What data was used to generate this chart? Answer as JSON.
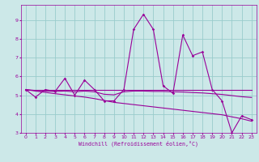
{
  "xlabel": "Windchill (Refroidissement éolien,°C)",
  "background_color": "#cce8e8",
  "grid_color": "#99cccc",
  "line_color": "#990099",
  "xlim": [
    -0.5,
    23.5
  ],
  "ylim": [
    3.0,
    9.8
  ],
  "yticks": [
    3,
    4,
    5,
    6,
    7,
    8,
    9
  ],
  "xticks": [
    0,
    1,
    2,
    3,
    4,
    5,
    6,
    7,
    8,
    9,
    10,
    11,
    12,
    13,
    14,
    15,
    16,
    17,
    18,
    19,
    20,
    21,
    22,
    23
  ],
  "series1_x": [
    0,
    1,
    2,
    3,
    4,
    5,
    6,
    7,
    8,
    9,
    10,
    11,
    12,
    13,
    14,
    15,
    16,
    17,
    18,
    19,
    20,
    21,
    22,
    23
  ],
  "series1_y": [
    5.3,
    4.9,
    5.3,
    5.2,
    5.9,
    5.0,
    5.8,
    5.3,
    4.7,
    4.7,
    5.3,
    8.5,
    9.3,
    8.5,
    5.5,
    5.1,
    8.2,
    7.1,
    7.3,
    5.3,
    4.7,
    3.0,
    3.9,
    3.7
  ],
  "series2_x": [
    0,
    23
  ],
  "series2_y": [
    5.3,
    5.3
  ],
  "series3_x": [
    0,
    1,
    2,
    3,
    4,
    5,
    6,
    7,
    8,
    9,
    10,
    11,
    12,
    13,
    14,
    15,
    16,
    17,
    18,
    19,
    20,
    21,
    22,
    23
  ],
  "series3_y": [
    5.3,
    5.25,
    5.22,
    5.2,
    5.22,
    5.18,
    5.22,
    5.18,
    5.05,
    5.02,
    5.18,
    5.22,
    5.22,
    5.2,
    5.2,
    5.18,
    5.17,
    5.14,
    5.12,
    5.08,
    5.04,
    4.98,
    4.92,
    4.88
  ],
  "series4_x": [
    0,
    1,
    2,
    3,
    4,
    5,
    6,
    7,
    8,
    9,
    10,
    11,
    12,
    13,
    14,
    15,
    16,
    17,
    18,
    19,
    20,
    21,
    22,
    23
  ],
  "series4_y": [
    5.3,
    5.22,
    5.15,
    5.08,
    5.02,
    4.96,
    4.9,
    4.82,
    4.72,
    4.62,
    4.56,
    4.5,
    4.44,
    4.38,
    4.32,
    4.26,
    4.2,
    4.14,
    4.08,
    4.02,
    3.96,
    3.85,
    3.75,
    3.62
  ]
}
